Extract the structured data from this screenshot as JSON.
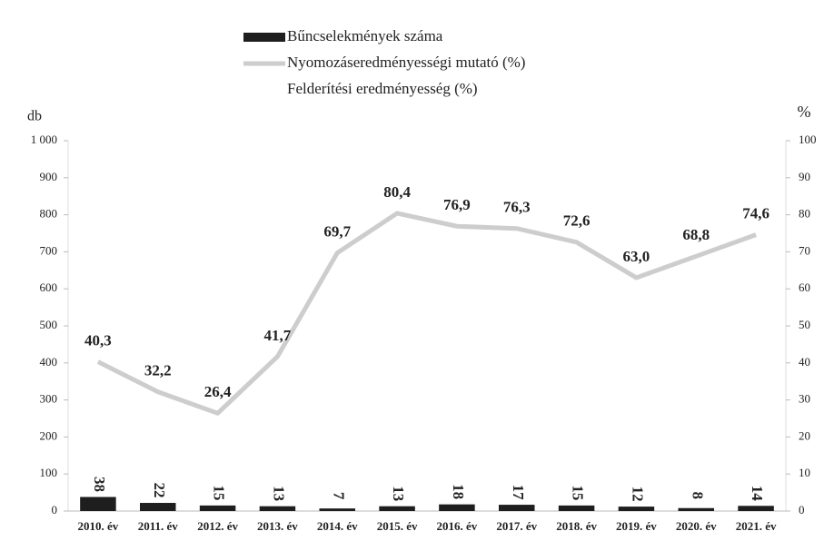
{
  "chart_data": {
    "type": "bar",
    "categories": [
      "2010. év",
      "2011. év",
      "2012. év",
      "2013. év",
      "2014. év",
      "2015. év",
      "2016. év",
      "2017. év",
      "2018. év",
      "2019. év",
      "2020. év",
      "2021. év"
    ],
    "y_label": "db",
    "y2_label": "%",
    "series": [
      {
        "name": "Bűncselekmények száma",
        "type": "bar",
        "color": "#1e1e1e",
        "values": [
          38,
          22,
          15,
          13,
          7,
          13,
          18,
          17,
          15,
          12,
          8,
          14
        ]
      },
      {
        "name": "Nyomozáseredményességi mutató (%)",
        "type": "line",
        "axis": "y2",
        "color": "#cdcdcd",
        "values": [
          40.3,
          32.2,
          26.4,
          41.7,
          69.7,
          80.4,
          76.9,
          76.3,
          72.6,
          63.0,
          68.8,
          74.6
        ],
        "value_labels": [
          "40,3",
          "32,2",
          "26,4",
          "41,7",
          "69,7",
          "80,4",
          "76,9",
          "76,3",
          "72,6",
          "63,0",
          "68,8",
          "74,6"
        ]
      },
      {
        "name": "Felderítési eredményesség (%)",
        "type": "line",
        "axis": "y2",
        "color": "#ffffff",
        "values": [
          null,
          null,
          null,
          null,
          null,
          null,
          null,
          null,
          null,
          null,
          null,
          null
        ]
      }
    ],
    "ylim": [
      0,
      1000
    ],
    "yticks": [
      0,
      100,
      200,
      300,
      400,
      500,
      600,
      700,
      800,
      900,
      {
        "value": 1000,
        "label": "1 000"
      }
    ],
    "y2lim": [
      0,
      100
    ],
    "y2ticks": [
      0,
      10,
      20,
      30,
      40,
      50,
      60,
      70,
      80,
      90,
      100
    ]
  }
}
